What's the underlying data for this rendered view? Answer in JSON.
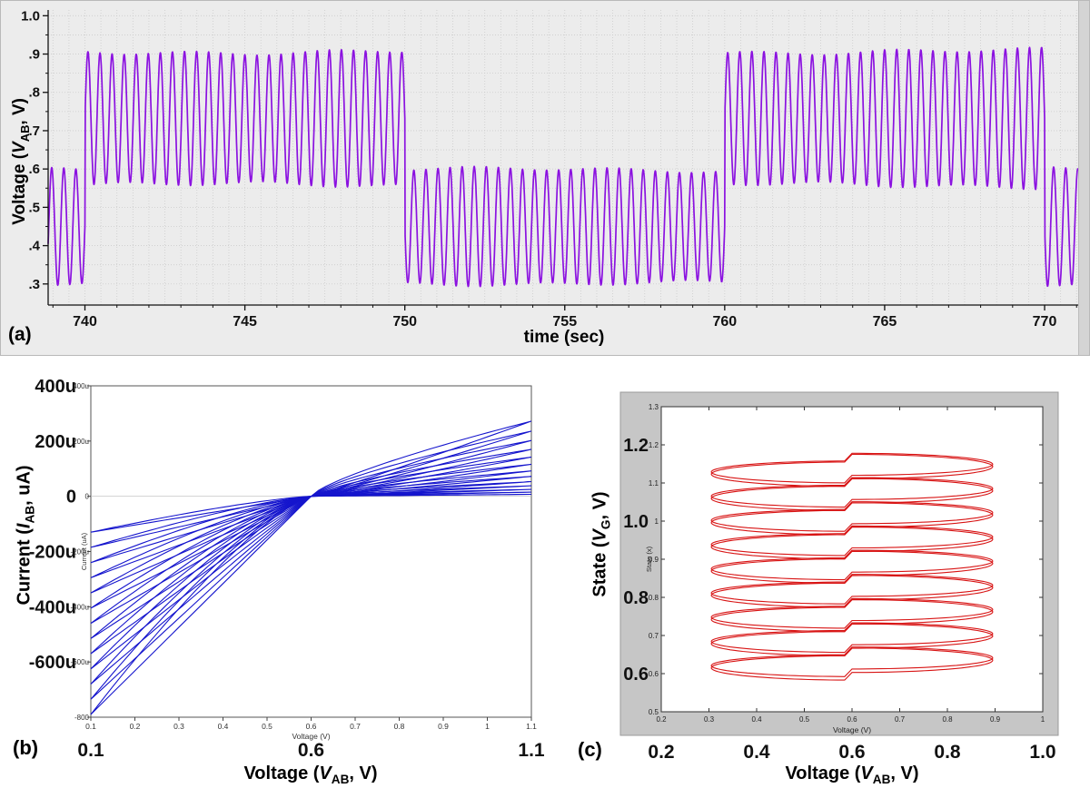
{
  "figure": {
    "background": "#ffffff",
    "panel_a_background": "#ececec",
    "panel_c_background": "#c6c6c6"
  },
  "chart_data": [
    {
      "id": "a",
      "type": "line",
      "panel_label": "(a)",
      "xlabel": "time (sec)",
      "ylabel": {
        "pre": "Voltage (",
        "var": "V",
        "sub": "AB",
        "post": ", V)"
      },
      "line_color": "#8b12e0",
      "grid": true,
      "xlim": [
        738.85,
        771.05
      ],
      "ylim": [
        0.245,
        1.015
      ],
      "xticks": [
        740,
        745,
        750,
        755,
        760,
        765,
        770
      ],
      "yticks": [
        1.0,
        0.9,
        0.8,
        0.7,
        0.6,
        0.5,
        0.4,
        0.3
      ],
      "ytick_labels": [
        "1.0",
        ".9",
        ".8",
        ".7",
        ".6",
        ".5",
        ".4",
        ".3"
      ],
      "signal": {
        "description": "~2.65 Hz oscillation whose envelope alternates every 10 s between a low band (0.30-0.60 V) and a high band (0.55-0.91 V)",
        "frequency_hz": 2.65,
        "segments": [
          {
            "t0": 738.85,
            "t1": 740.0,
            "center": 0.45,
            "amplitude": 0.148
          },
          {
            "t0": 740.0,
            "t1": 750.0,
            "center": 0.732,
            "amplitude": 0.175
          },
          {
            "t0": 750.0,
            "t1": 760.0,
            "center": 0.45,
            "amplitude": 0.148
          },
          {
            "t0": 760.0,
            "t1": 770.0,
            "center": 0.732,
            "amplitude": 0.175
          },
          {
            "t0": 770.0,
            "t1": 771.05,
            "center": 0.45,
            "amplitude": 0.148
          }
        ]
      }
    },
    {
      "id": "b",
      "type": "line",
      "panel_label": "(b)",
      "xlabel": {
        "pre": "Voltage (",
        "var": "V",
        "sub": "AB",
        "post": ", V)"
      },
      "ylabel": {
        "pre": "Current (",
        "var": "I",
        "sub": "AB",
        "post": ", uA)"
      },
      "inner_xlabel": "Voltage (V)",
      "inner_ylabel": "Current (uA)",
      "line_color": "#1515cd",
      "xlim": [
        0.1,
        1.1
      ],
      "ylim_uA": [
        -800,
        400
      ],
      "pinch_voltage": 0.6,
      "inner_xtick_values": [
        0.1,
        0.2,
        0.3,
        0.4,
        0.5,
        0.6,
        0.7,
        0.8,
        0.9,
        1.0,
        1.1
      ],
      "inner_xtick_labels": [
        "0.1",
        "0.2",
        "0.3",
        "0.4",
        "0.5",
        "0.6",
        "0.7",
        "0.8",
        "0.9",
        "1",
        "1.1"
      ],
      "inner_ytick_values": [
        400,
        200,
        0,
        -200,
        -400,
        -600,
        -800
      ],
      "inner_ytick_labels": [
        "400u",
        "200u",
        "0",
        "-200u",
        "-400u",
        "-600u",
        "-800"
      ],
      "big_xtick_values": [
        0.1,
        0.6,
        1.1
      ],
      "big_xtick_labels": [
        "0.1",
        "0.6",
        "1.1"
      ],
      "big_ytick_values": [
        400,
        200,
        0,
        -200,
        -400,
        -600
      ],
      "big_ytick_labels": [
        "400u",
        "200u",
        "0",
        "-200u",
        "-400u",
        "-600u"
      ],
      "curve_exponents": {
        "left": [
          1.0,
          1.3
        ],
        "right": [
          0.75,
          1.05
        ]
      },
      "loops": [
        {
          "left_peak_uA": 130,
          "right_peak_uA": 7
        },
        {
          "left_peak_uA": 185,
          "right_peak_uA": 15
        },
        {
          "left_peak_uA": 240,
          "right_peak_uA": 25
        },
        {
          "left_peak_uA": 295,
          "right_peak_uA": 38
        },
        {
          "left_peak_uA": 350,
          "right_peak_uA": 53
        },
        {
          "left_peak_uA": 405,
          "right_peak_uA": 72
        },
        {
          "left_peak_uA": 460,
          "right_peak_uA": 92
        },
        {
          "left_peak_uA": 515,
          "right_peak_uA": 116
        },
        {
          "left_peak_uA": 570,
          "right_peak_uA": 142
        },
        {
          "left_peak_uA": 625,
          "right_peak_uA": 170
        },
        {
          "left_peak_uA": 680,
          "right_peak_uA": 202
        },
        {
          "left_peak_uA": 735,
          "right_peak_uA": 236
        },
        {
          "left_peak_uA": 790,
          "right_peak_uA": 272
        }
      ]
    },
    {
      "id": "c",
      "type": "line",
      "panel_label": "(c)",
      "xlabel": {
        "pre": "Voltage (",
        "var": "V",
        "sub": "AB",
        "post": ", V)"
      },
      "ylabel": {
        "pre": "State (",
        "var": "V",
        "sub": "G",
        "post": ", V)"
      },
      "inner_xlabel": "Voltage (V)",
      "inner_ylabel": "State (x)",
      "line_color": "#d81414",
      "xlim": [
        0.2,
        1.0
      ],
      "ylim": [
        0.5,
        1.3
      ],
      "inner_xtick_values": [
        0.2,
        0.3,
        0.4,
        0.5,
        0.6,
        0.7,
        0.8,
        0.9,
        1.0
      ],
      "inner_xtick_labels": [
        "0.2",
        "0.3",
        "0.4",
        "0.5",
        "0.6",
        "0.7",
        "0.8",
        "0.9",
        "1"
      ],
      "inner_ytick_values": [
        0.5,
        0.6,
        0.7,
        0.8,
        0.9,
        1.0,
        1.1,
        1.2,
        1.3
      ],
      "inner_ytick_labels": [
        "0.5",
        "0.6",
        "0.7",
        "0.8",
        "0.9",
        "1",
        "1.1",
        "1.2",
        "1.3"
      ],
      "big_xtick_values": [
        0.2,
        0.4,
        0.6,
        0.8,
        1.0
      ],
      "big_xtick_labels": [
        "0.2",
        "0.4",
        "0.6",
        "0.8",
        "1.0"
      ],
      "big_ytick_values": [
        0.6,
        0.8,
        1.0,
        1.2
      ],
      "big_ytick_labels": [
        "0.6",
        "0.8",
        "1.0",
        "1.2"
      ],
      "orbits": {
        "description": "Stacked state-vs-voltage orbits between V=0.3 and V=0.9 with a discontinuity at V=0.6",
        "count": 9,
        "y_start": 0.625,
        "y_step": 0.0635,
        "x_center": 0.6,
        "x_radius": 0.295,
        "y_radius": 0.032,
        "jump": 0.01
      }
    }
  ]
}
